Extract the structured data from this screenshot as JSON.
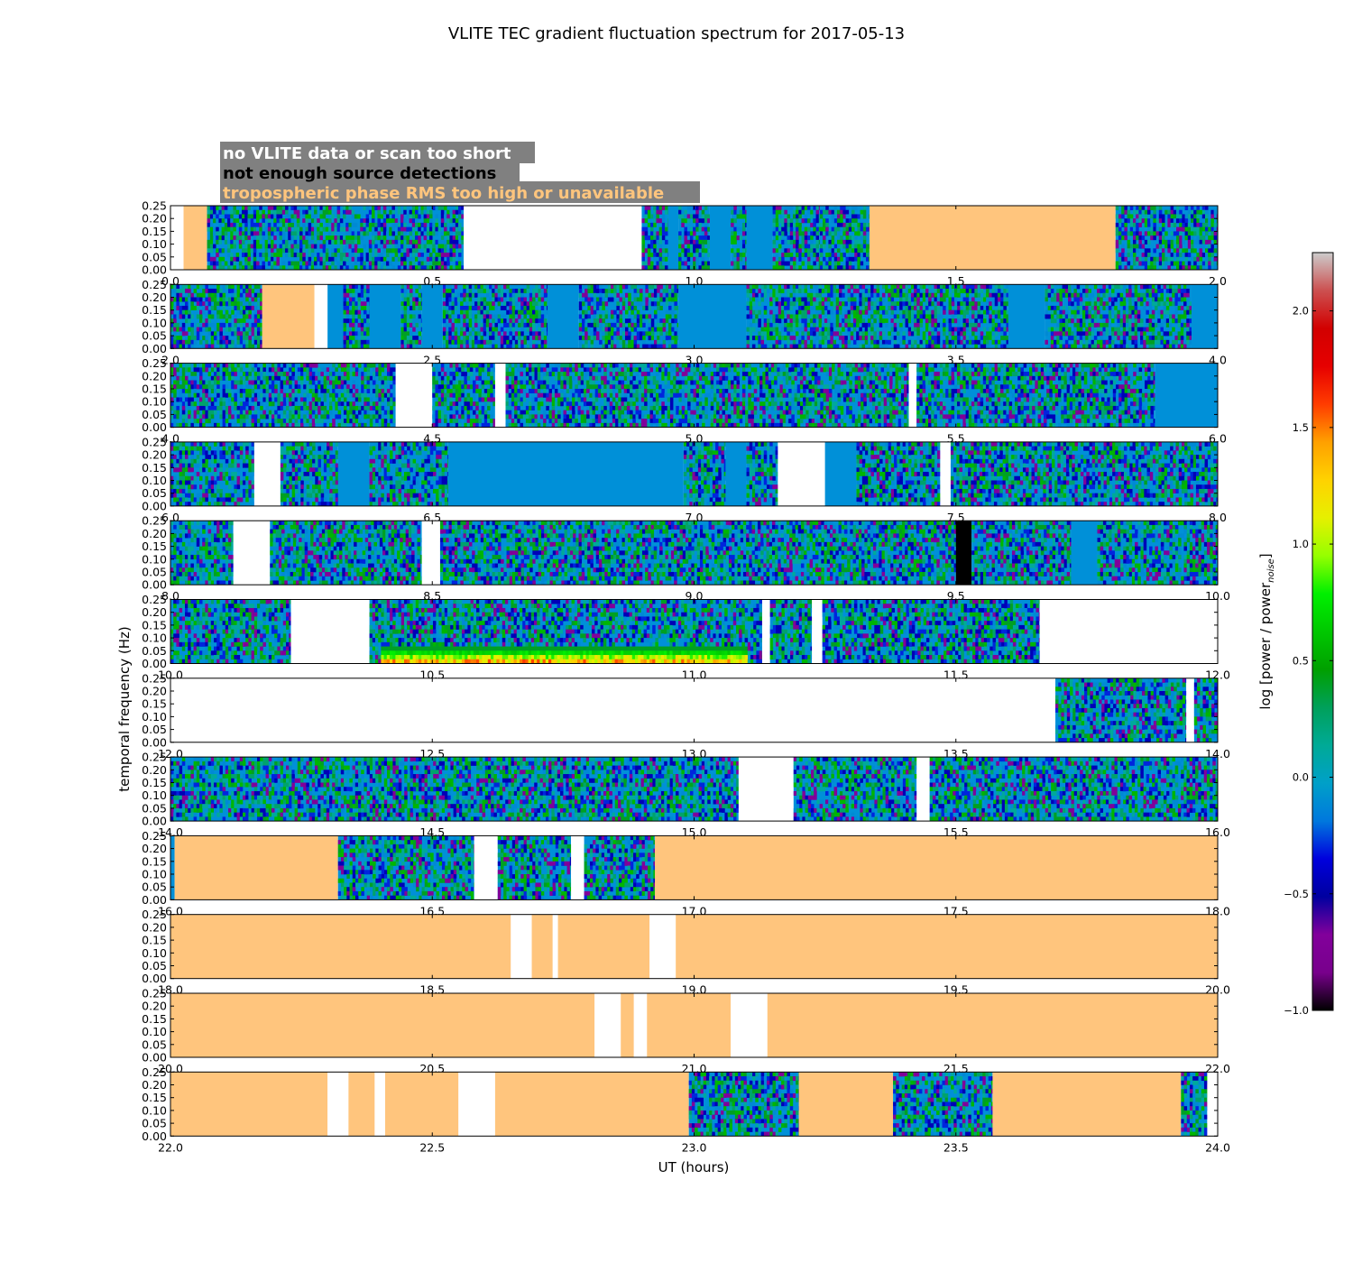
{
  "chart_data": {
    "type": "heatmap",
    "title": "VLITE TEC gradient fluctuation spectrum for 2017-05-13",
    "xlabel": "UT (hours)",
    "ylabel": "temporal frequency (Hz)",
    "ylim": [
      0,
      0.25
    ],
    "yticks": [
      "0.00",
      "0.05",
      "0.10",
      "0.15",
      "0.20",
      "0.25"
    ],
    "colorbar": {
      "label_main": "log [power / power",
      "label_sub": "noise",
      "label_close": "]",
      "min": -1.0,
      "max": 2.25,
      "ticks": [
        -1.0,
        -0.5,
        0.0,
        0.5,
        1.0,
        1.5,
        2.0
      ],
      "tick_labels": [
        "−1.0",
        "−0.5",
        "0.0",
        "0.5",
        "1.0",
        "1.5",
        "2.0"
      ],
      "colormap": "nipy_spectral"
    },
    "legend": [
      {
        "label": "no VLITE data or scan too short",
        "category": "nodata",
        "text_color": "#ffffff",
        "swatch": "#ffffff"
      },
      {
        "label": "not enough source detections",
        "category": "nodet",
        "text_color": "#000000",
        "swatch": "#000000"
      },
      {
        "label": "tropospheric phase RMS too high or unavailable",
        "category": "tropo",
        "text_color": "#ffc57d",
        "swatch": "#ffc57d"
      }
    ],
    "legend_box_color": "#808080",
    "colors": {
      "nodata": "#ffffff",
      "nodet": "#000000",
      "tropo": "#ffc57d",
      "baseline": "#0090d8"
    },
    "rows": [
      {
        "xlim": [
          0,
          2
        ],
        "xticks": [
          "0.0",
          "0.5",
          "1.0",
          "1.5",
          "2.0"
        ],
        "segments": [
          [
            0.0,
            0.025,
            "nodata"
          ],
          [
            0.025,
            0.07,
            "tropo"
          ],
          [
            0.07,
            0.56,
            "data"
          ],
          [
            0.56,
            0.9,
            "nodata"
          ],
          [
            0.9,
            0.95,
            "data"
          ],
          [
            0.95,
            0.97,
            "base"
          ],
          [
            0.97,
            1.03,
            "data"
          ],
          [
            1.03,
            1.07,
            "base"
          ],
          [
            1.07,
            1.1,
            "data"
          ],
          [
            1.1,
            1.15,
            "base"
          ],
          [
            1.15,
            1.24,
            "data"
          ],
          [
            1.24,
            1.335,
            "data"
          ],
          [
            1.335,
            1.805,
            "tropo"
          ],
          [
            1.805,
            2.0,
            "data"
          ]
        ]
      },
      {
        "xlim": [
          2,
          4
        ],
        "xticks": [
          "2.0",
          "2.5",
          "3.0",
          "3.5",
          "4.0"
        ],
        "segments": [
          [
            2.0,
            2.175,
            "data"
          ],
          [
            2.175,
            2.275,
            "tropo"
          ],
          [
            2.275,
            2.3,
            "nodata"
          ],
          [
            2.3,
            2.33,
            "base"
          ],
          [
            2.33,
            2.38,
            "data"
          ],
          [
            2.38,
            2.44,
            "base"
          ],
          [
            2.44,
            2.48,
            "data"
          ],
          [
            2.48,
            2.52,
            "base"
          ],
          [
            2.52,
            2.72,
            "data"
          ],
          [
            2.72,
            2.78,
            "base"
          ],
          [
            2.78,
            2.97,
            "data"
          ],
          [
            2.97,
            3.1,
            "base"
          ],
          [
            3.1,
            3.6,
            "data"
          ],
          [
            3.6,
            3.67,
            "base"
          ],
          [
            3.67,
            3.95,
            "data"
          ],
          [
            3.95,
            4.0,
            "base"
          ]
        ]
      },
      {
        "xlim": [
          4,
          6
        ],
        "xticks": [
          "4.0",
          "4.5",
          "5.0",
          "5.5",
          "6.0"
        ],
        "segments": [
          [
            4.0,
            4.43,
            "data"
          ],
          [
            4.43,
            4.5,
            "nodata"
          ],
          [
            4.5,
            4.62,
            "data"
          ],
          [
            4.62,
            4.64,
            "nodata"
          ],
          [
            4.64,
            5.41,
            "data"
          ],
          [
            5.41,
            5.425,
            "nodata"
          ],
          [
            5.425,
            5.88,
            "data"
          ],
          [
            5.88,
            6.0,
            "base"
          ]
        ]
      },
      {
        "xlim": [
          6,
          8
        ],
        "xticks": [
          "6.0",
          "6.5",
          "7.0",
          "7.5",
          "8.0"
        ],
        "segments": [
          [
            6.0,
            6.16,
            "data"
          ],
          [
            6.16,
            6.21,
            "nodata"
          ],
          [
            6.21,
            6.32,
            "data"
          ],
          [
            6.32,
            6.38,
            "base"
          ],
          [
            6.38,
            6.53,
            "data"
          ],
          [
            6.53,
            6.98,
            "base"
          ],
          [
            6.98,
            7.06,
            "data"
          ],
          [
            7.06,
            7.1,
            "base"
          ],
          [
            7.1,
            7.16,
            "data"
          ],
          [
            7.16,
            7.25,
            "nodata"
          ],
          [
            7.25,
            7.31,
            "base"
          ],
          [
            7.31,
            7.47,
            "data"
          ],
          [
            7.47,
            7.49,
            "nodata"
          ],
          [
            7.49,
            8.0,
            "data"
          ]
        ]
      },
      {
        "xlim": [
          8,
          10
        ],
        "xticks": [
          "8.0",
          "8.5",
          "9.0",
          "9.5",
          "10.0"
        ],
        "segments": [
          [
            8.0,
            8.12,
            "data"
          ],
          [
            8.12,
            8.19,
            "nodata"
          ],
          [
            8.19,
            8.48,
            "data"
          ],
          [
            8.48,
            8.515,
            "nodata"
          ],
          [
            8.515,
            9.5,
            "data"
          ],
          [
            9.5,
            9.53,
            "nodet"
          ],
          [
            9.53,
            9.72,
            "data"
          ],
          [
            9.72,
            9.77,
            "base"
          ],
          [
            9.77,
            10.0,
            "data"
          ]
        ]
      },
      {
        "xlim": [
          10,
          12
        ],
        "xticks": [
          "10.0",
          "10.5",
          "11.0",
          "11.5",
          "12.0"
        ],
        "segments": [
          [
            10.0,
            10.23,
            "data"
          ],
          [
            10.23,
            10.38,
            "nodata"
          ],
          [
            10.38,
            11.13,
            "data"
          ],
          [
            11.13,
            11.145,
            "nodata"
          ],
          [
            11.145,
            11.225,
            "data"
          ],
          [
            11.225,
            11.245,
            "nodata"
          ],
          [
            11.245,
            11.66,
            "data"
          ],
          [
            11.66,
            12.0,
            "nodata"
          ]
        ]
      },
      {
        "xlim": [
          12,
          14
        ],
        "xticks": [
          "12.0",
          "12.5",
          "13.0",
          "13.5",
          "14.0"
        ],
        "segments": [
          [
            12.0,
            13.69,
            "nodata"
          ],
          [
            13.69,
            13.94,
            "data"
          ],
          [
            13.94,
            13.955,
            "nodata"
          ],
          [
            13.955,
            14.0,
            "data"
          ]
        ]
      },
      {
        "xlim": [
          14,
          16
        ],
        "xticks": [
          "14.0",
          "14.5",
          "15.0",
          "15.5",
          "16.0"
        ],
        "segments": [
          [
            14.0,
            15.085,
            "data"
          ],
          [
            15.085,
            15.19,
            "nodata"
          ],
          [
            15.19,
            15.36,
            "data"
          ],
          [
            15.36,
            15.425,
            "data"
          ],
          [
            15.425,
            15.45,
            "nodata"
          ],
          [
            15.45,
            16.0,
            "data"
          ]
        ]
      },
      {
        "xlim": [
          16,
          18
        ],
        "xticks": [
          "16.0",
          "16.5",
          "17.0",
          "17.5",
          "18.0"
        ],
        "segments": [
          [
            16.0,
            16.008,
            "base"
          ],
          [
            16.008,
            16.32,
            "tropo"
          ],
          [
            16.32,
            16.58,
            "data"
          ],
          [
            16.58,
            16.625,
            "nodata"
          ],
          [
            16.625,
            16.765,
            "data"
          ],
          [
            16.765,
            16.79,
            "nodata"
          ],
          [
            16.79,
            16.925,
            "data"
          ],
          [
            16.925,
            18.0,
            "tropo"
          ]
        ]
      },
      {
        "xlim": [
          18,
          20
        ],
        "xticks": [
          "18.0",
          "18.5",
          "19.0",
          "19.5",
          "20.0"
        ],
        "segments": [
          [
            18.0,
            18.65,
            "tropo"
          ],
          [
            18.65,
            18.69,
            "nodata"
          ],
          [
            18.69,
            18.73,
            "tropo"
          ],
          [
            18.73,
            18.74,
            "nodata"
          ],
          [
            18.74,
            18.915,
            "tropo"
          ],
          [
            18.915,
            18.965,
            "nodata"
          ],
          [
            18.965,
            20.0,
            "tropo"
          ]
        ]
      },
      {
        "xlim": [
          20,
          22
        ],
        "xticks": [
          "20.0",
          "20.5",
          "21.0",
          "21.5",
          "22.0"
        ],
        "segments": [
          [
            20.0,
            20.81,
            "tropo"
          ],
          [
            20.81,
            20.86,
            "nodata"
          ],
          [
            20.86,
            20.885,
            "tropo"
          ],
          [
            20.885,
            20.91,
            "nodata"
          ],
          [
            20.91,
            21.07,
            "tropo"
          ],
          [
            21.07,
            21.14,
            "nodata"
          ],
          [
            21.14,
            22.0,
            "tropo"
          ]
        ]
      },
      {
        "xlim": [
          22,
          24
        ],
        "xticks": [
          "22.0",
          "22.5",
          "23.0",
          "23.5",
          "24.0"
        ],
        "segments": [
          [
            22.0,
            22.3,
            "tropo"
          ],
          [
            22.3,
            22.34,
            "nodata"
          ],
          [
            22.34,
            22.39,
            "tropo"
          ],
          [
            22.39,
            22.41,
            "nodata"
          ],
          [
            22.41,
            22.55,
            "tropo"
          ],
          [
            22.55,
            22.62,
            "nodata"
          ],
          [
            22.62,
            22.99,
            "tropo"
          ],
          [
            22.99,
            23.2,
            "data"
          ],
          [
            23.2,
            23.38,
            "tropo"
          ],
          [
            23.38,
            23.57,
            "data"
          ],
          [
            23.57,
            23.93,
            "tropo"
          ],
          [
            23.93,
            23.98,
            "data"
          ],
          [
            23.98,
            24.0,
            "nodata"
          ]
        ]
      }
    ],
    "enhancement": {
      "row": 5,
      "x_start": 10.4,
      "x_end": 11.1,
      "level": 1.4
    }
  }
}
